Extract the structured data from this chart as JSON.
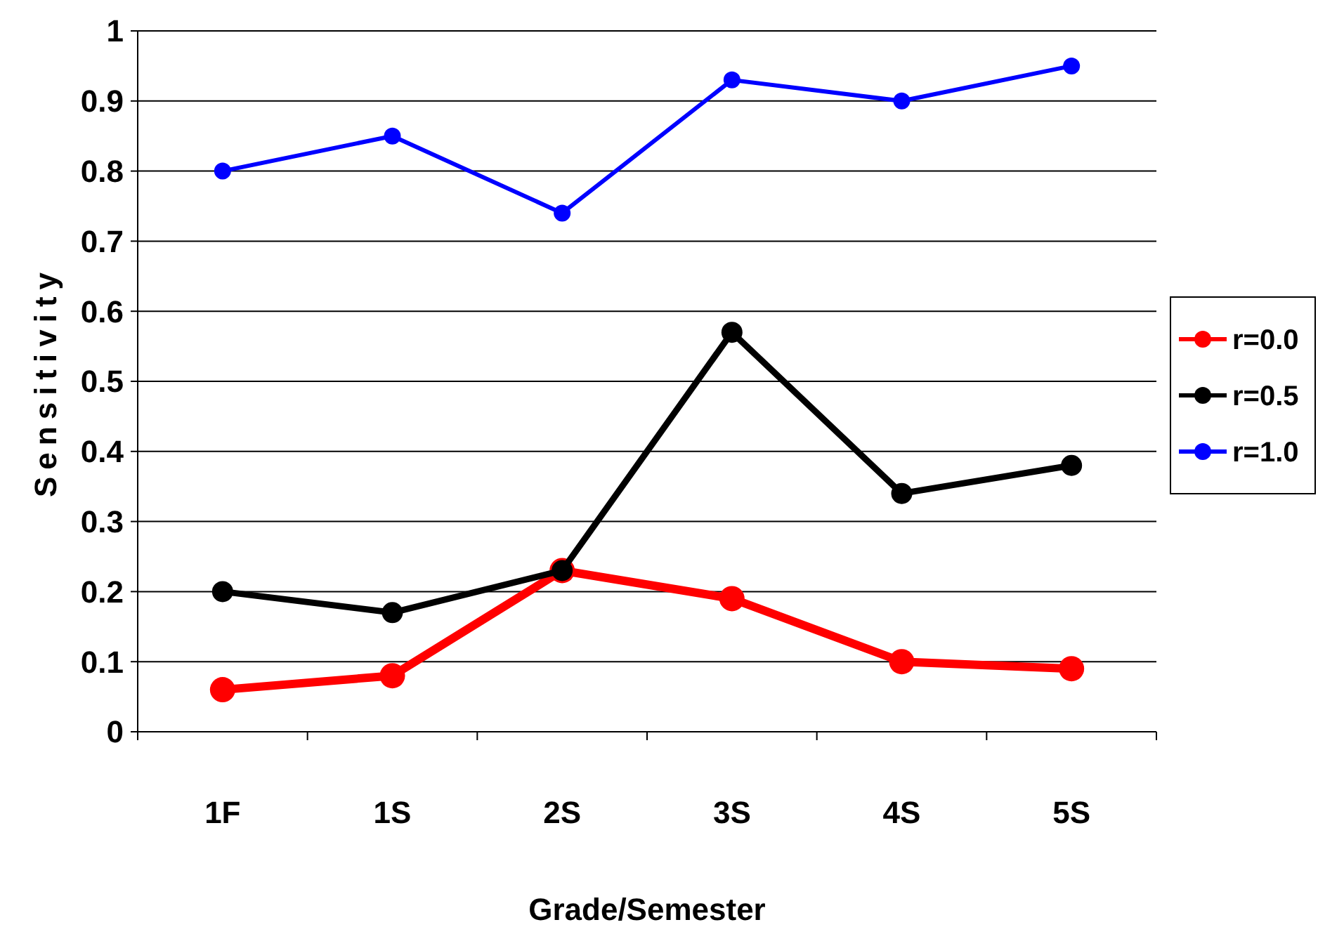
{
  "chart_data": {
    "type": "line",
    "xlabel": "Grade/Semester",
    "ylabel": "Sensitivity",
    "categories": [
      "1F",
      "1S",
      "2S",
      "3S",
      "4S",
      "5S"
    ],
    "series": [
      {
        "name": "r=0.0",
        "color": "#ff0000",
        "values": [
          0.06,
          0.08,
          0.23,
          0.19,
          0.1,
          0.09
        ]
      },
      {
        "name": "r=0.5",
        "color": "#000000",
        "values": [
          0.2,
          0.17,
          0.23,
          0.57,
          0.34,
          0.38
        ]
      },
      {
        "name": "r=1.0",
        "color": "#0000ff",
        "values": [
          0.8,
          0.85,
          0.74,
          0.93,
          0.9,
          0.95
        ]
      }
    ],
    "ylim": [
      0,
      1
    ],
    "yticks": [
      0,
      0.1,
      0.2,
      0.3,
      0.4,
      0.5,
      0.6,
      0.7,
      0.8,
      0.9,
      1
    ],
    "grid": "y",
    "legend": "right",
    "marker": "circle",
    "line_style": "solid"
  }
}
